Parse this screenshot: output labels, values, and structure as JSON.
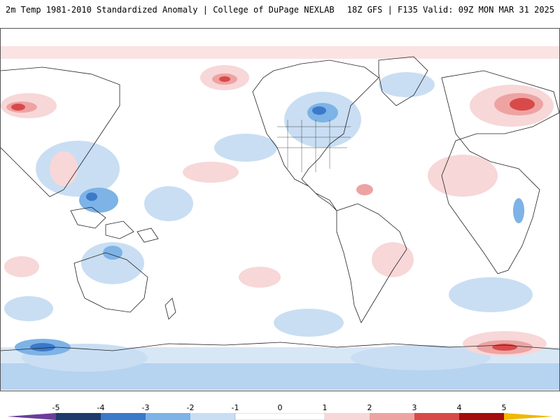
{
  "header": {
    "left_title": "2m Temp 1981-2010 Standardized Anomaly | College of DuPage NEXLAB",
    "right_title": "18Z GFS | F135 Valid: 09Z MON MAR 31 2025"
  },
  "legend": {
    "labels": [
      "-5",
      "-4",
      "-3",
      "-2",
      "-1",
      "0",
      "1",
      "2",
      "3",
      "4",
      "5"
    ],
    "colors": [
      "#6a3d9a",
      "#1f3a6b",
      "#3b79c9",
      "#7db3e6",
      "#c9def3",
      "#ffffff",
      "#f7d7d7",
      "#eea3a3",
      "#d84a4a",
      "#a30d0d",
      "#f2b705"
    ]
  }
}
